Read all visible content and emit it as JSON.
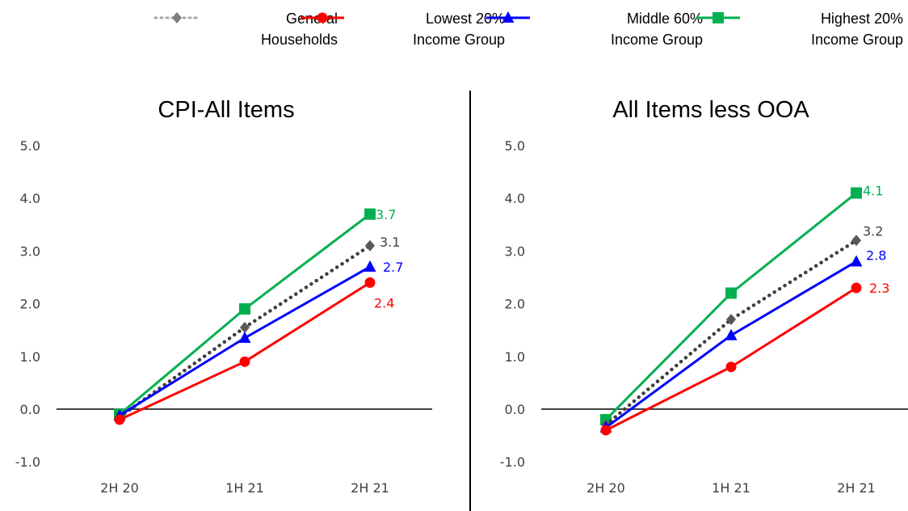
{
  "legend": {
    "items": [
      {
        "label": "General\nHouseholds",
        "color": "#595959",
        "marker": "diamond",
        "dash": "dotted"
      },
      {
        "label": "Lowest 20%\nIncome Group",
        "color": "#ff0000",
        "marker": "circle",
        "dash": "solid"
      },
      {
        "label": "Middle 60%\nIncome Group",
        "color": "#0000ff",
        "marker": "triangle",
        "dash": "solid"
      },
      {
        "label": "Highest 20%\nIncome Group",
        "color": "#00b050",
        "marker": "square",
        "dash": "solid"
      }
    ]
  },
  "chart_data": [
    {
      "type": "line",
      "title": "CPI-All Items",
      "categories": [
        "2H 20",
        "1H 21",
        "2H 21"
      ],
      "ylim": [
        -1.0,
        5.0
      ],
      "yticks": [
        "-1.0",
        "0.0",
        "1.0",
        "2.0",
        "3.0",
        "4.0",
        "5.0"
      ],
      "series": [
        {
          "name": "General Households",
          "values": [
            -0.15,
            1.55,
            3.1
          ],
          "end_label": "3.1"
        },
        {
          "name": "Lowest 20% Income Group",
          "values": [
            -0.2,
            0.9,
            2.4
          ],
          "end_label": "2.4"
        },
        {
          "name": "Middle 60% Income Group",
          "values": [
            -0.12,
            1.35,
            2.7
          ],
          "end_label": "2.7"
        },
        {
          "name": "Highest 20% Income Group",
          "values": [
            -0.1,
            1.9,
            3.7
          ],
          "end_label": "3.7"
        }
      ]
    },
    {
      "type": "line",
      "title": "All Items less OOA",
      "categories": [
        "2H 20",
        "1H 21",
        "2H 21"
      ],
      "ylim": [
        -1.0,
        5.0
      ],
      "yticks": [
        "-1.0",
        "0.0",
        "1.0",
        "2.0",
        "3.0",
        "4.0",
        "5.0"
      ],
      "series": [
        {
          "name": "General Households",
          "values": [
            -0.3,
            1.7,
            3.2
          ],
          "end_label": "3.2"
        },
        {
          "name": "Lowest 20% Income Group",
          "values": [
            -0.4,
            0.8,
            2.3
          ],
          "end_label": "2.3"
        },
        {
          "name": "Middle 60% Income Group",
          "values": [
            -0.35,
            1.4,
            2.8
          ],
          "end_label": "2.8"
        },
        {
          "name": "Highest 20% Income Group",
          "values": [
            -0.2,
            2.2,
            4.1
          ],
          "end_label": "4.1"
        }
      ]
    }
  ]
}
